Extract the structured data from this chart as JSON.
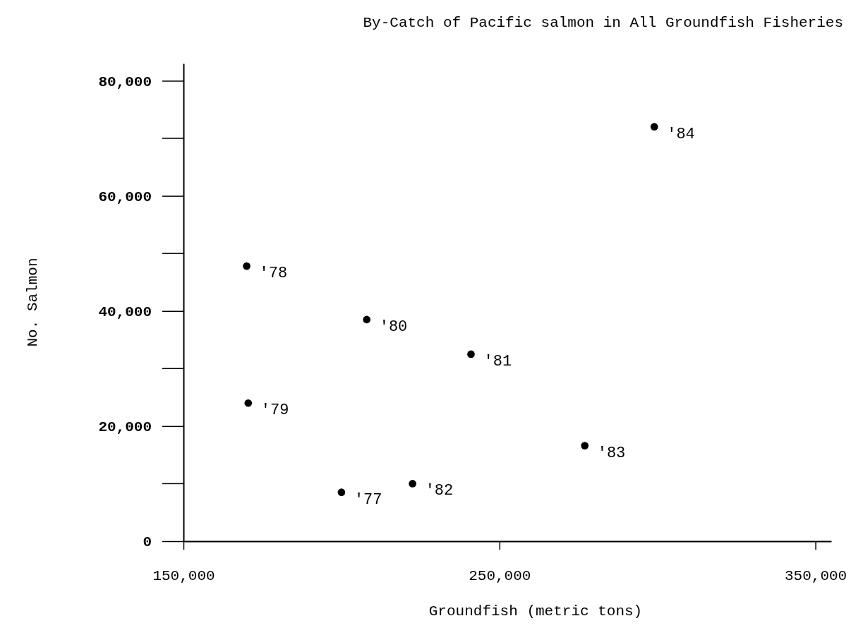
{
  "chart_data": {
    "type": "scatter",
    "title": "By-Catch of Pacific salmon in All Groundfish Fisheries",
    "xlabel": "Groundfish (metric tons)",
    "ylabel": "No. Salmon",
    "x": [
      200000,
      170000,
      170500,
      208000,
      241000,
      222500,
      277000,
      299000
    ],
    "values": [
      8500,
      47800,
      24000,
      38500,
      32500,
      10000,
      16600,
      72000
    ],
    "color": "#000000",
    "marker": "circle",
    "grid": false,
    "legend": false,
    "xlim": [
      150000,
      355000
    ],
    "xticks": [
      {
        "value": 150000,
        "label": "150,000"
      },
      {
        "value": 250000,
        "label": "250,000"
      },
      {
        "value": 350000,
        "label": "350,000"
      }
    ],
    "ylim": [
      0,
      83000
    ],
    "yticks": [
      {
        "value": 0,
        "label": "0"
      },
      {
        "value": 20000,
        "label": "20,000"
      },
      {
        "value": 40000,
        "label": "40,000"
      },
      {
        "value": 60000,
        "label": "60,000"
      },
      {
        "value": 80000,
        "label": "80,000"
      }
    ],
    "annotations": [
      {
        "text": "'77",
        "x": 200000,
        "y": 8500
      },
      {
        "text": "'78",
        "x": 170000,
        "y": 47800
      },
      {
        "text": "'79",
        "x": 170500,
        "y": 24000
      },
      {
        "text": "'80",
        "x": 208000,
        "y": 38500
      },
      {
        "text": "'81",
        "x": 241000,
        "y": 32500
      },
      {
        "text": "'82",
        "x": 222500,
        "y": 10000
      },
      {
        "text": "'83",
        "x": 277000,
        "y": 16600
      },
      {
        "text": "'84",
        "x": 299000,
        "y": 72000
      }
    ]
  }
}
